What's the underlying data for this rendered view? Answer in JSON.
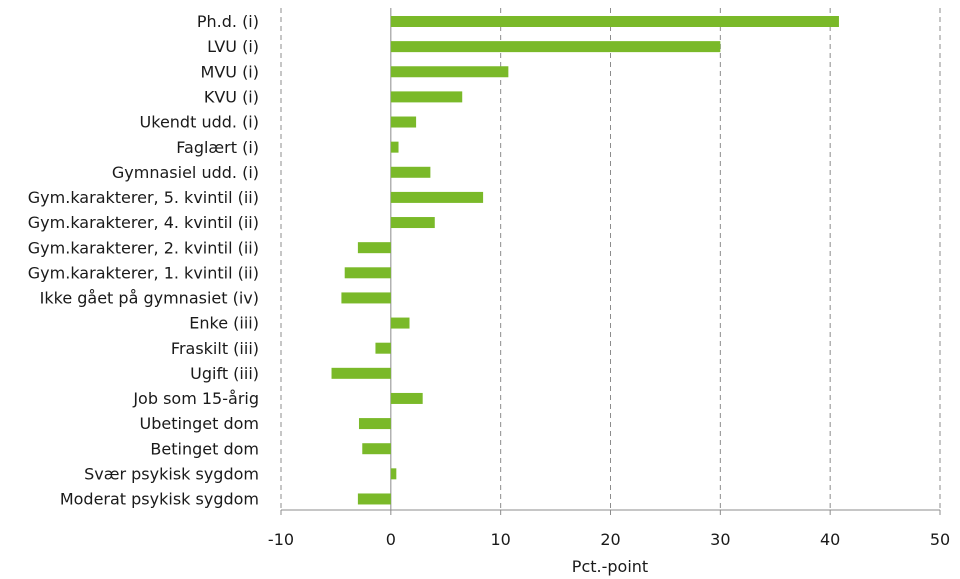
{
  "chart_data": {
    "type": "bar",
    "orientation": "horizontal",
    "categories": [
      "Ph.d. (i)",
      "LVU (i)",
      "MVU (i)",
      "KVU (i)",
      "Ukendt udd. (i)",
      "Faglært (i)",
      "Gymnasiel udd. (i)",
      "Gym.karakterer, 5. kvintil (ii)",
      "Gym.karakterer, 4. kvintil (ii)",
      "Gym.karakterer, 2. kvintil (ii)",
      "Gym.karakterer, 1. kvintil (ii)",
      "Ikke gået på gymnasiet (iv)",
      "Enke (iii)",
      "Fraskilt (iii)",
      "Ugift (iii)",
      "Job som 15-årig",
      "Ubetinget dom",
      "Betinget dom",
      "Svær psykisk sygdom",
      "Moderat psykisk sygdom"
    ],
    "values": [
      40.8,
      30.0,
      10.7,
      6.5,
      2.3,
      0.7,
      3.6,
      8.4,
      4.0,
      -3.0,
      -4.2,
      -4.5,
      1.7,
      -1.4,
      -5.4,
      2.9,
      -2.9,
      -2.6,
      0.5,
      -3.0
    ],
    "xlabel": "Pct.-point",
    "xlim": [
      -10,
      50
    ],
    "xticks": [
      -10,
      0,
      10,
      20,
      30,
      40,
      50
    ],
    "xtick_labels": [
      "-10",
      "0",
      "10",
      "20",
      "30",
      "40",
      "50"
    ],
    "grid": "vertical dashed",
    "bar_color": "#7ab929"
  }
}
